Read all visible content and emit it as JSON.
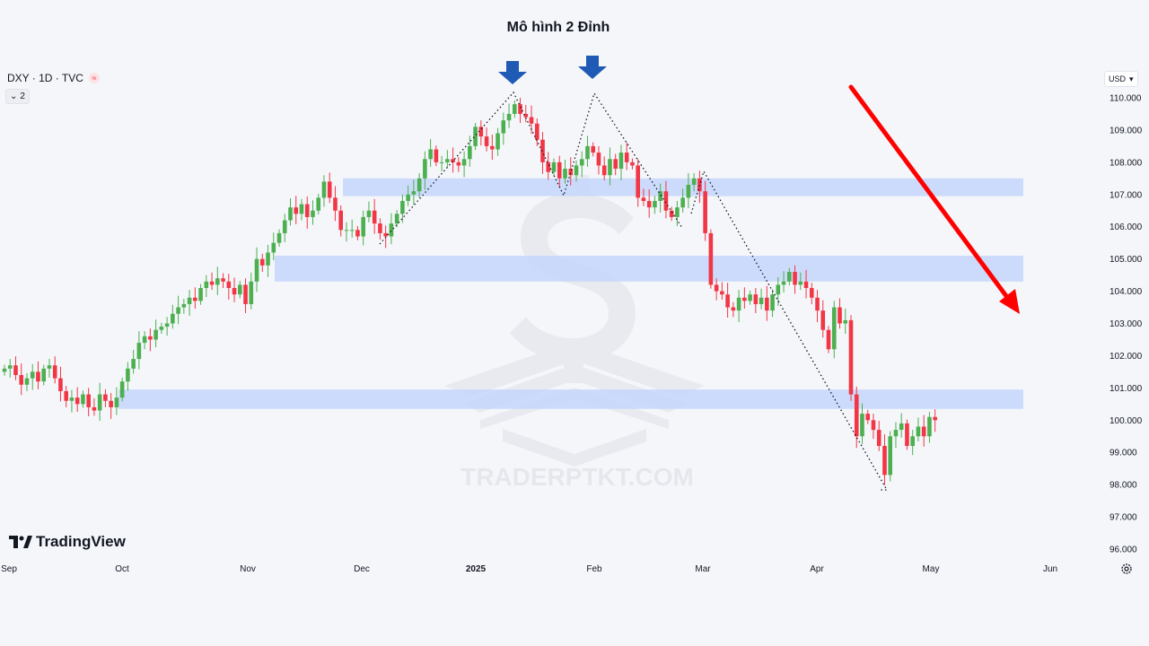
{
  "title": "Mô hình 2 Đỉnh",
  "symbol": {
    "label": "DXY · 1D · TVC",
    "indicator_count": "2"
  },
  "currency": "USD",
  "brand": "TradingView",
  "watermark": "TRADERPTKT.COM",
  "colors": {
    "up": "#4caf50",
    "down": "#f23645",
    "zone": "#c4d6fb",
    "arrow": "#ff0000",
    "marker": "#1f5ab4"
  },
  "chart_data": {
    "type": "candlestick",
    "ylim": [
      95.8,
      111.0
    ],
    "y_ticks": [
      "96.000",
      "97.000",
      "98.000",
      "99.000",
      "100.000",
      "101.000",
      "102.000",
      "103.000",
      "104.000",
      "105.000",
      "106.000",
      "107.000",
      "108.000",
      "109.000",
      "110.000"
    ],
    "x_ticks": [
      {
        "label": "Sep",
        "bold": false
      },
      {
        "label": "Oct",
        "bold": false
      },
      {
        "label": "Nov",
        "bold": false
      },
      {
        "label": "Dec",
        "bold": false
      },
      {
        "label": "2025",
        "bold": true
      },
      {
        "label": "Feb",
        "bold": false
      },
      {
        "label": "Mar",
        "bold": false
      },
      {
        "label": "Apr",
        "bold": false
      },
      {
        "label": "May",
        "bold": false
      },
      {
        "label": "Jun",
        "bold": false
      }
    ],
    "closes": [
      101.6,
      101.7,
      101.4,
      101.1,
      101.3,
      101.5,
      101.2,
      101.6,
      101.7,
      101.3,
      100.9,
      100.6,
      100.7,
      100.5,
      100.8,
      100.4,
      100.3,
      100.8,
      100.6,
      100.4,
      100.7,
      101.2,
      101.6,
      101.9,
      102.4,
      102.6,
      102.5,
      102.8,
      102.9,
      103.0,
      103.3,
      103.5,
      103.6,
      103.8,
      103.7,
      104.1,
      104.3,
      104.2,
      104.4,
      104.3,
      104.1,
      103.9,
      104.2,
      103.6,
      104.3,
      105.0,
      104.8,
      105.2,
      105.5,
      105.8,
      106.2,
      106.6,
      106.4,
      106.7,
      106.3,
      106.5,
      106.9,
      107.4,
      106.9,
      106.5,
      105.9,
      105.9,
      105.9,
      105.7,
      106.3,
      106.5,
      106.1,
      105.8,
      105.7,
      106.1,
      106.4,
      106.8,
      107.0,
      107.1,
      107.5,
      108.1,
      108.4,
      108.0,
      108.0,
      108.1,
      108.0,
      107.9,
      108.1,
      108.5,
      109.1,
      108.8,
      108.5,
      108.4,
      108.9,
      109.3,
      109.5,
      109.8,
      109.5,
      109.4,
      109.2,
      108.7,
      108.0,
      107.7,
      108.0,
      107.5,
      107.8,
      107.6,
      107.9,
      108.1,
      108.5,
      108.3,
      107.9,
      107.6,
      108.1,
      107.8,
      108.3,
      108.0,
      107.9,
      106.9,
      106.8,
      106.6,
      106.8,
      107.1,
      106.5,
      106.3,
      106.6,
      106.9,
      107.3,
      107.5,
      107.1,
      105.8,
      104.2,
      104.0,
      103.9,
      103.5,
      103.4,
      103.8,
      103.7,
      103.9,
      103.6,
      103.8,
      103.4,
      103.9,
      104.2,
      104.3,
      104.6,
      104.2,
      104.3,
      104.1,
      103.8,
      103.4,
      102.8,
      102.2,
      103.5,
      103.0,
      103.1,
      100.8,
      99.5,
      100.2,
      100.0,
      99.7,
      99.2,
      98.3,
      99.5,
      99.7,
      99.9,
      99.2,
      99.5,
      99.8,
      99.5,
      100.1,
      100.0
    ]
  },
  "annotations": {
    "zones": [
      {
        "low": 106.95,
        "high": 107.5
      },
      {
        "low": 104.3,
        "high": 105.1
      },
      {
        "low": 100.35,
        "high": 100.95
      }
    ]
  }
}
